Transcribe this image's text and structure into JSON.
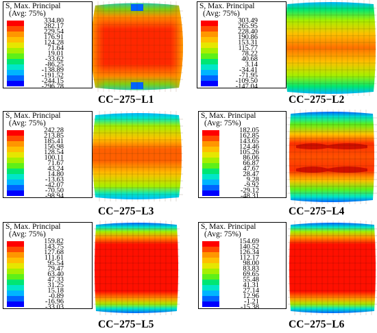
{
  "legend_title": "S, Max. Principal",
  "legend_sub": "(Avg: 75%)",
  "legend_colors": [
    "#ff0000",
    "#ff4a00",
    "#ff9600",
    "#ffbf00",
    "#e6e600",
    "#a6ef00",
    "#5ef018",
    "#00e673",
    "#00e6c8",
    "#00b5ff",
    "#0064ff",
    "#0000ff"
  ],
  "panels": [
    {
      "id": "L1",
      "caption": "CC−275−L1",
      "values": [
        "334.80",
        "282.17",
        "229.54",
        "176.91",
        "124.28",
        "71.64",
        "19.01",
        "-33.62",
        "-86.25",
        "-138.89",
        "-191.52",
        "-244.15",
        "-296.78"
      ]
    },
    {
      "id": "L2",
      "caption": "CC−275−L2",
      "values": [
        "303.49",
        "265.95",
        "228.40",
        "190.86",
        "153.31",
        "115.77",
        "78.22",
        "40.68",
        "3.14",
        "-34.41",
        "-71.95",
        "-109.50",
        "-147.04"
      ]
    },
    {
      "id": "L3",
      "caption": "CC−275−L3",
      "values": [
        "242.28",
        "213.85",
        "185.41",
        "156.98",
        "128.54",
        "100.11",
        "71.67",
        "43.24",
        "14.80",
        "-13.63",
        "-42.07",
        "-70.50",
        "-98.94"
      ]
    },
    {
      "id": "L4",
      "caption": "CC−275−L4",
      "values": [
        "182.05",
        "162.85",
        "143.65",
        "124.46",
        "105.26",
        "86.06",
        "66.87",
        "47.67",
        "28.47",
        "9.28",
        "-9.92",
        "-29.12",
        "-48.31"
      ]
    },
    {
      "id": "L5",
      "caption": "CC−275−L5",
      "values": [
        "159.82",
        "143.75",
        "127.68",
        "111.61",
        "95.54",
        "79.47",
        "63.40",
        "47.33",
        "31.25",
        "15.18",
        "-0.89",
        "-16.96",
        "-33.03"
      ]
    },
    {
      "id": "L6",
      "caption": "CC−275−L6",
      "values": [
        "154.69",
        "140.52",
        "126.34",
        "112.17",
        "98.00",
        "83.83",
        "69.65",
        "55.48",
        "41.31",
        "27.14",
        "12.96",
        "-1.21",
        "-15.38"
      ]
    }
  ]
}
